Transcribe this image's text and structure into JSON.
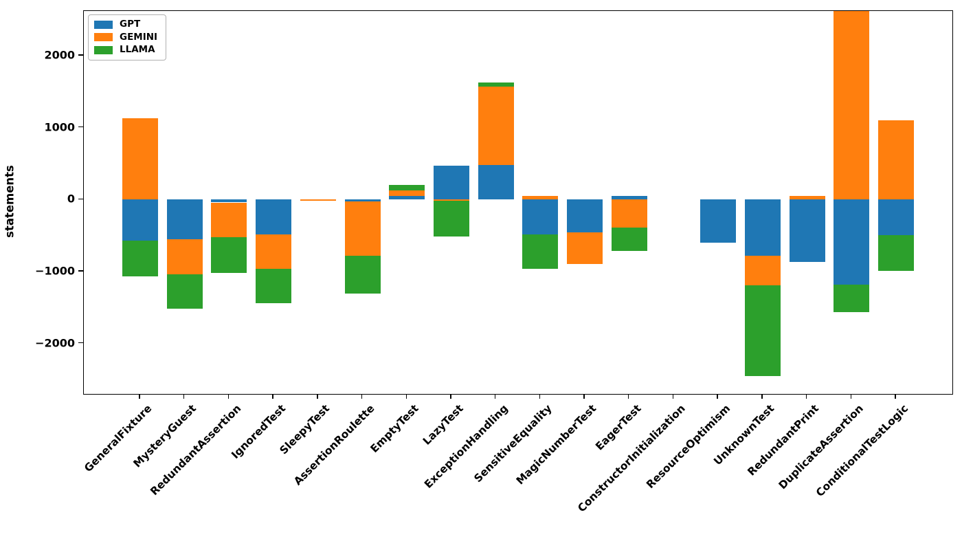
{
  "chart_data": {
    "type": "bar",
    "stacked": true,
    "title": "",
    "xlabel": "",
    "ylabel": "statements",
    "grid": false,
    "legend": {
      "position": "upper-left",
      "entries": [
        "GPT",
        "GEMINI",
        "LLAMA"
      ]
    },
    "colors": {
      "GPT": "#1f77b4",
      "GEMINI": "#ff7f0e",
      "LLAMA": "#2ca02c"
    },
    "axis_color": "#000000",
    "yticks": [
      2000,
      1000,
      0,
      -1000,
      -2000
    ],
    "ytick_labels": [
      "2000",
      "1000",
      "0",
      "−1000",
      "−2000"
    ],
    "ylim": [
      -2700,
      2620
    ],
    "clip_note": "DuplicateAssertion GEMINI bar is clipped by the top of the axes",
    "categories": [
      "GeneralFixture",
      "MysteryGuest",
      "RedundantAssertion",
      "IgnoredTest",
      "SleepyTest",
      "AssertionRoulette",
      "EmptyTest",
      "LazyTest",
      "ExceptionHandling",
      "SensitiveEquality",
      "MagicNumberTest",
      "EagerTest",
      "ConstructorInitialization",
      "ResourceOptimism",
      "UnknownTest",
      "RedundantPrint",
      "DuplicateAssertion",
      "ConditionalTestLogic"
    ],
    "series": [
      {
        "name": "GPT",
        "color": "#1f77b4",
        "values": [
          -570,
          -555,
          -40,
          -480,
          0,
          -30,
          55,
          470,
          480,
          -480,
          -455,
          50,
          0,
          -600,
          -780,
          -870,
          -1180,
          -490
        ]
      },
      {
        "name": "GEMINI",
        "color": "#ff7f0e",
        "values": [
          1130,
          -485,
          -480,
          -480,
          -15,
          -750,
          72,
          -15,
          1090,
          55,
          -440,
          -390,
          0,
          0,
          -410,
          55,
          2650,
          1100
        ]
      },
      {
        "name": "LLAMA",
        "color": "#2ca02c",
        "values": [
          -500,
          -480,
          -500,
          -475,
          0,
          -525,
          72,
          -500,
          55,
          -480,
          0,
          -320,
          0,
          0,
          -1260,
          0,
          -380,
          -500
        ]
      }
    ]
  }
}
